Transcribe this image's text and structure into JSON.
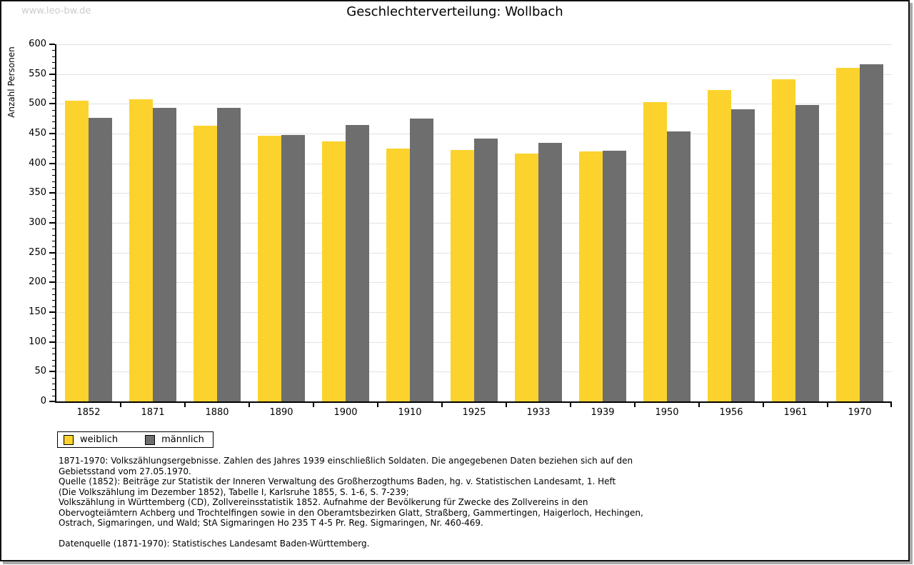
{
  "page": {
    "watermark": "www.leo-bw.de"
  },
  "chart_data": {
    "type": "bar",
    "title": "Geschlechterverteilung: Wollbach",
    "xlabel": "",
    "ylabel": "Anzahl Personen",
    "ylim": [
      0,
      600
    ],
    "ytick_step": 50,
    "minor_tick_step": 10,
    "grid": true,
    "legend_position": "below-left",
    "categories": [
      "1852",
      "1871",
      "1880",
      "1890",
      "1900",
      "1910",
      "1925",
      "1933",
      "1939",
      "1950",
      "1956",
      "1961",
      "1970"
    ],
    "series": [
      {
        "name": "weiblich",
        "color": "#fcd22d",
        "values": [
          505,
          508,
          463,
          447,
          437,
          425,
          423,
          416,
          420,
          503,
          523,
          541,
          561
        ]
      },
      {
        "name": "männlich",
        "color": "#6e6e6e",
        "values": [
          477,
          493,
          493,
          448,
          464,
          475,
          442,
          435,
          421,
          454,
          491,
          498,
          567
        ]
      }
    ]
  },
  "footer": {
    "lines": [
      "1871-1970: Volkszählungsergebnisse. Zahlen des Jahres 1939 einschließlich Soldaten. Die angegebenen Daten beziehen sich auf den",
      "Gebietsstand vom 27.05.1970.",
      "Quelle (1852): Beiträge zur Statistik der Inneren Verwaltung des Großherzogthums Baden, hg. v. Statistischen Landesamt, 1. Heft",
      "(Die Volkszählung im Dezember 1852), Tabelle I, Karlsruhe 1855, S. 1-6, S. 7-239;",
      "Volkszählung in Württemberg (CD), Zollvereinsstatistik 1852. Aufnahme der Bevölkerung für Zwecke des Zollvereins in den",
      "Obervogteiämtern Achberg und Trochtelfingen sowie in den Oberamtsbezirken Glatt, Straßberg, Gammertingen, Haigerloch, Hechingen,",
      "Ostrach, Sigmaringen, und Wald; StA Sigmaringen Ho 235 T 4-5 Pr. Reg. Sigmaringen, Nr. 460-469."
    ],
    "datenquelle": "Datenquelle (1871-1970): Statistisches Landesamt Baden-Württemberg."
  },
  "colors": {
    "axis": "#000000",
    "grid": "#e2e2e2",
    "watermark": "#cccccc"
  }
}
